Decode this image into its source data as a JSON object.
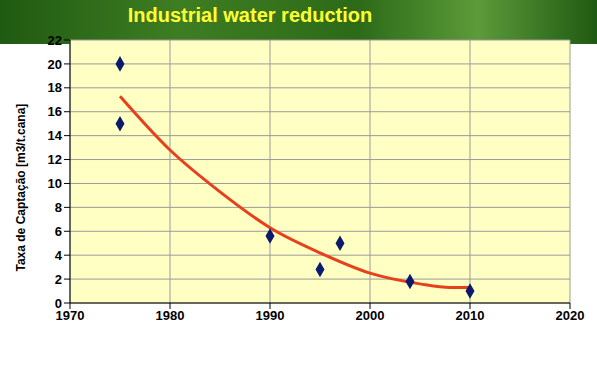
{
  "chart_data": {
    "type": "scatter",
    "title": "Industrial water reduction",
    "y_label": "Taxa de Captação [m3/t.cana]",
    "xlim": [
      1970,
      2020
    ],
    "xticks": [
      1970,
      1980,
      1990,
      2000,
      2010,
      2020
    ],
    "ylim": [
      0,
      22
    ],
    "yticks": [
      0,
      2,
      4,
      6,
      8,
      10,
      12,
      14,
      16,
      18,
      20,
      22
    ],
    "grid": true,
    "series": [
      {
        "type": "scatter",
        "color": "#0b1a6b",
        "marker": "diamond",
        "x": [
          1975,
          1975,
          1990,
          1995,
          1997,
          2004,
          2010
        ],
        "values": [
          20,
          15,
          5.6,
          2.8,
          5,
          1.8,
          1
        ]
      },
      {
        "type": "line",
        "color": "#e8401c",
        "line_style": "solid",
        "x": [
          1975,
          1980,
          1985,
          1990,
          1995,
          2000,
          2005,
          2008,
          2010
        ],
        "values": [
          17.3,
          12.8,
          9.3,
          6.3,
          4.2,
          2.5,
          1.6,
          1.3,
          1.3
        ]
      }
    ]
  }
}
